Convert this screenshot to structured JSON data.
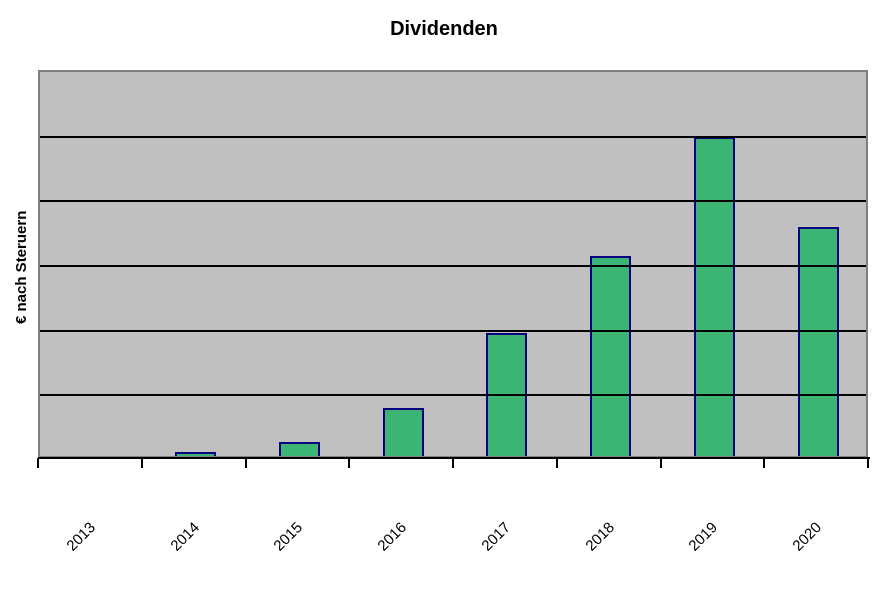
{
  "chart_data": {
    "type": "bar",
    "title": "Dividenden",
    "ylabel": "€ nach Steruern",
    "xlabel": "",
    "categories": [
      "2013",
      "2014",
      "2015",
      "2016",
      "2017",
      "2018",
      "2019",
      "2020"
    ],
    "values": [
      0,
      0.06,
      0.22,
      0.75,
      1.9,
      3.1,
      4.94,
      3.54
    ],
    "values_unit": "gridline-divisions",
    "ylim": [
      0,
      6
    ],
    "y_tick_labels": [],
    "gridline_divisions": 6,
    "grid": "horizontal",
    "legend": "none",
    "x_tick_rotation_deg": 45,
    "colors": {
      "plot_bg": "#C0C0C0",
      "plot_border": "#808080",
      "bar_fill": "#3CB473",
      "bar_border": "#000080",
      "gridline": "#000000",
      "axis": "#000000",
      "text": "#000000"
    }
  }
}
